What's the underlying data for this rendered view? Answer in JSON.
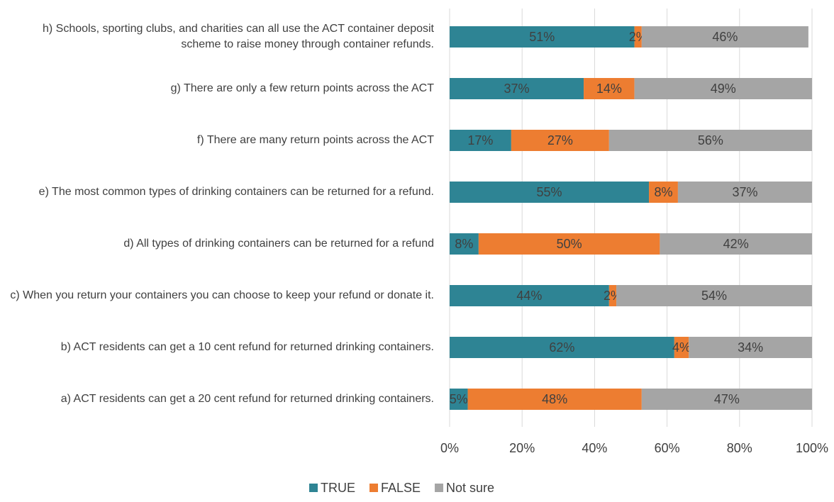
{
  "chart_data": {
    "type": "stacked-bar-horizontal",
    "categories": [
      "h) Schools, sporting clubs, and charities can all use the ACT container deposit scheme to raise money through container refunds.",
      "g) There are only a few return points across the ACT",
      "f) There are many return points across the ACT",
      "e) The most common types of drinking containers can be returned for a refund.",
      "d) All types of drinking containers can be returned for a refund",
      "c) When you return your containers you can choose to keep your refund or donate it.",
      "b) ACT residents can get a 10 cent refund for returned drinking containers.",
      "a) ACT residents can get a 20 cent refund for returned drinking containers."
    ],
    "series": [
      {
        "name": "TRUE",
        "color": "#2e8494",
        "values": [
          51,
          37,
          17,
          55,
          8,
          44,
          62,
          5
        ],
        "value_labels": [
          "51%",
          "37%",
          "17%",
          "55%",
          "8%",
          "44%",
          "62%",
          "5%"
        ]
      },
      {
        "name": "FALSE",
        "color": "#ed7d31",
        "values": [
          2,
          14,
          27,
          8,
          50,
          2,
          4,
          48
        ],
        "value_labels": [
          "2%",
          "14%",
          "27%",
          "8%",
          "50%",
          "2%",
          "4%",
          "48%"
        ]
      },
      {
        "name": "Not sure",
        "color": "#a5a5a5",
        "values": [
          46,
          49,
          56,
          37,
          42,
          54,
          34,
          47
        ],
        "value_labels": [
          "46%",
          "49%",
          "56%",
          "37%",
          "42%",
          "54%",
          "34%",
          "47%"
        ]
      }
    ],
    "xlim": [
      0,
      100
    ],
    "xticks": [
      {
        "value": 0,
        "label": "0%"
      },
      {
        "value": 20,
        "label": "20%"
      },
      {
        "value": 40,
        "label": "40%"
      },
      {
        "value": 60,
        "label": "60%"
      },
      {
        "value": 80,
        "label": "80%"
      },
      {
        "value": 100,
        "label": "100%"
      }
    ],
    "grid": true,
    "legend": "bottom"
  }
}
